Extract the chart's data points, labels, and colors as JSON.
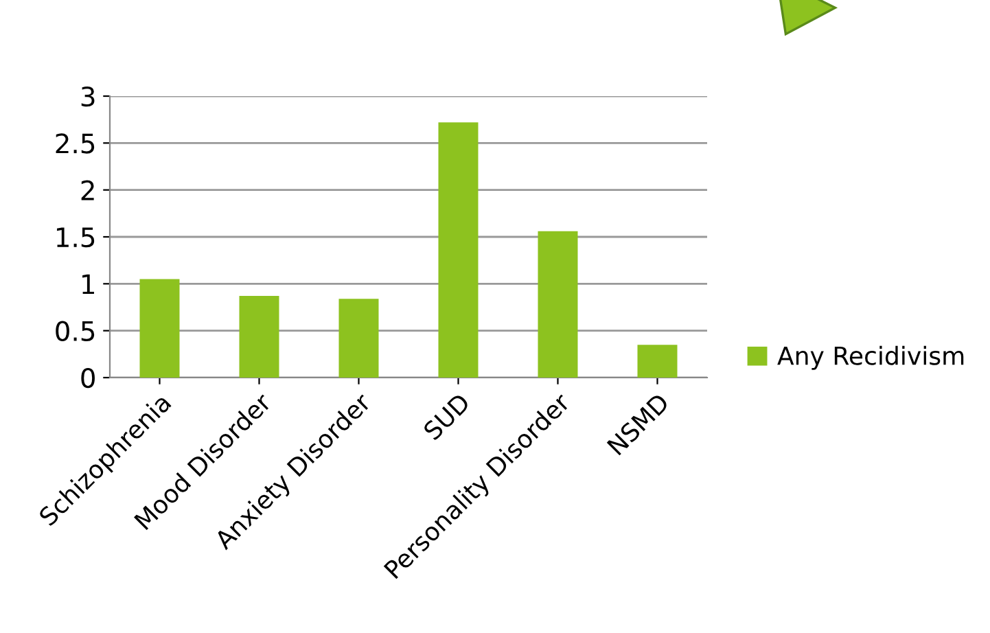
{
  "chart_data": {
    "type": "bar",
    "categories": [
      "Schizophrenia",
      "Mood Disorder",
      "Anxiety Disorder",
      "SUD",
      "Personality Disorder",
      "NSMD"
    ],
    "series": [
      {
        "name": "Any Recidivism",
        "color": "#8dc21f",
        "values": [
          1.05,
          0.87,
          0.84,
          2.72,
          1.56,
          0.35
        ]
      }
    ],
    "ylim": [
      0,
      3
    ],
    "yticks": [
      0,
      0.5,
      1,
      1.5,
      2,
      2.5,
      3
    ],
    "grid": "y",
    "legend": "right"
  }
}
